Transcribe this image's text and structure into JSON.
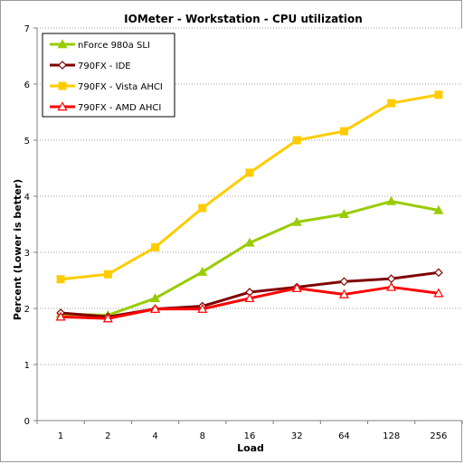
{
  "chart_data": {
    "type": "line",
    "title": "IOMeter - Workstation - CPU utilization",
    "xlabel": "Load",
    "ylabel": "Percent (Lower is better)",
    "categories": [
      "1",
      "2",
      "4",
      "8",
      "16",
      "32",
      "64",
      "128",
      "256"
    ],
    "ylim": [
      0,
      7
    ],
    "yticks": [
      0,
      1,
      2,
      3,
      4,
      5,
      6,
      7
    ],
    "grid": true,
    "legend_position": "top-left",
    "series": [
      {
        "name": "nForce 980a SLI",
        "color": "#99cc00",
        "marker": "triangle-filled",
        "values": [
          1.9,
          1.88,
          2.18,
          2.65,
          3.17,
          3.54,
          3.68,
          3.91,
          3.75
        ]
      },
      {
        "name": "790FX - IDE",
        "color": "#800000",
        "marker": "diamond-open",
        "values": [
          1.92,
          1.85,
          1.99,
          2.04,
          2.29,
          2.38,
          2.48,
          2.53,
          2.64
        ]
      },
      {
        "name": "790FX - Vista AHCI",
        "color": "#ffcc00",
        "marker": "square-filled",
        "values": [
          2.52,
          2.61,
          3.09,
          3.79,
          4.42,
          5.0,
          5.16,
          5.66,
          5.81
        ]
      },
      {
        "name": "790FX - AMD AHCI",
        "color": "#ff0000",
        "marker": "triangle-open",
        "values": [
          1.85,
          1.82,
          1.99,
          1.99,
          2.18,
          2.36,
          2.25,
          2.38,
          2.27
        ]
      }
    ]
  }
}
